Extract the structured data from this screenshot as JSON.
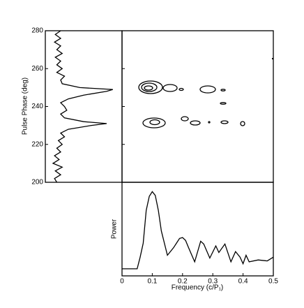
{
  "chart_data": [
    {
      "type": "vline",
      "ylabel": "Pulse Phase (deg)",
      "ylim": [
        200,
        280
      ],
      "yticks": [
        200,
        220,
        240,
        260,
        280
      ],
      "xlim": [
        0,
        1
      ],
      "color": "#000000",
      "y": [
        200,
        202,
        204,
        206,
        208,
        210,
        212,
        214,
        216,
        218,
        220,
        222,
        224,
        226,
        228,
        230,
        231,
        232,
        234,
        236,
        238,
        240,
        242,
        244,
        246,
        248,
        249,
        250,
        252,
        254,
        256,
        258,
        260,
        262,
        264,
        266,
        268,
        270,
        272,
        274,
        276,
        278,
        280
      ],
      "values": [
        0.15,
        0.12,
        0.2,
        0.13,
        0.22,
        0.1,
        0.18,
        0.12,
        0.2,
        0.15,
        0.22,
        0.17,
        0.25,
        0.2,
        0.3,
        0.6,
        0.8,
        0.5,
        0.25,
        0.2,
        0.28,
        0.25,
        0.2,
        0.3,
        0.5,
        0.8,
        0.88,
        0.45,
        0.22,
        0.2,
        0.25,
        0.15,
        0.22,
        0.15,
        0.2,
        0.13,
        0.22,
        0.15,
        0.2,
        0.12,
        0.2,
        0.13,
        0.2
      ]
    },
    {
      "type": "line",
      "xlabel": "Frequency (c/P₁)",
      "ylabel": "Power",
      "xlim": [
        0,
        0.5
      ],
      "xticks": [
        0,
        0.1,
        0.2,
        0.3,
        0.4,
        0.5
      ],
      "ylim": [
        0,
        1
      ],
      "color": "#000000",
      "x": [
        0,
        0.03,
        0.05,
        0.06,
        0.07,
        0.08,
        0.09,
        0.1,
        0.11,
        0.12,
        0.13,
        0.15,
        0.17,
        0.19,
        0.2,
        0.21,
        0.22,
        0.24,
        0.26,
        0.27,
        0.29,
        0.31,
        0.32,
        0.34,
        0.36,
        0.375,
        0.39,
        0.4,
        0.41,
        0.42,
        0.45,
        0.48,
        0.5
      ],
      "values": [
        0.075,
        0.075,
        0.075,
        0.2,
        0.35,
        0.7,
        0.85,
        0.9,
        0.86,
        0.7,
        0.48,
        0.22,
        0.3,
        0.4,
        0.41,
        0.38,
        0.3,
        0.15,
        0.37,
        0.34,
        0.19,
        0.32,
        0.25,
        0.34,
        0.15,
        0.26,
        0.2,
        0.13,
        0.22,
        0.15,
        0.17,
        0.16,
        0.2
      ]
    }
  ]
}
